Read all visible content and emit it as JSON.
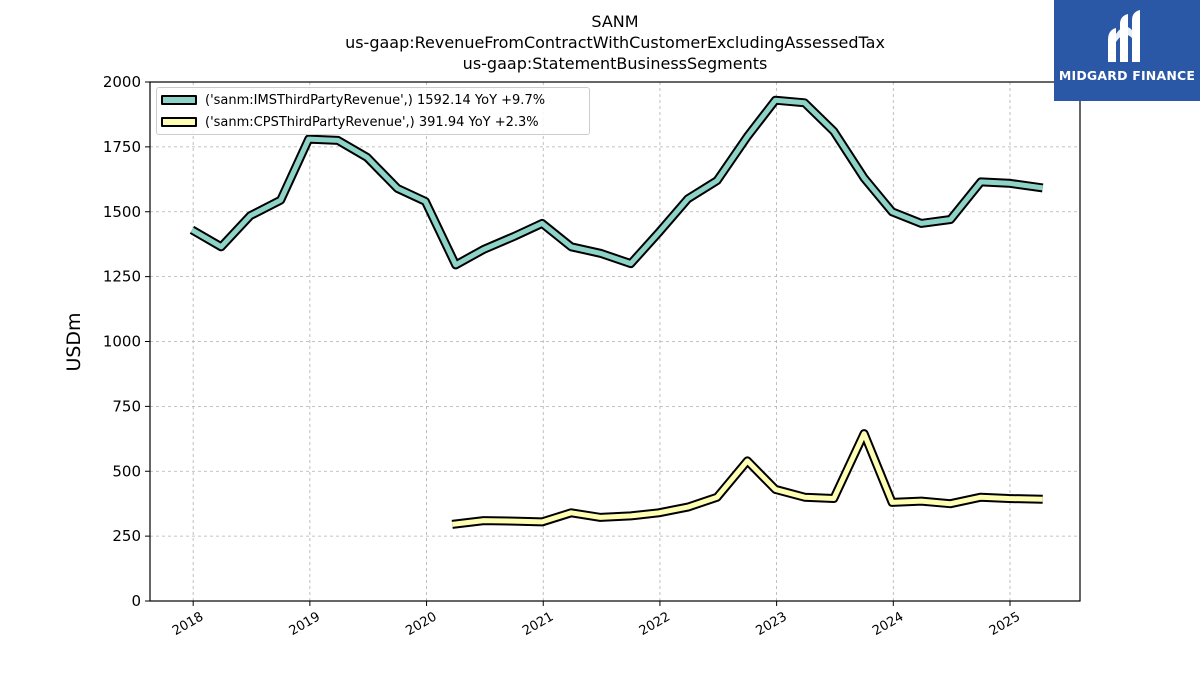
{
  "header": {
    "title_lines": [
      "SANM",
      "us-gaap:RevenueFromContractWithCustomerExcludingAssessedTax",
      "us-gaap:StatementBusinessSegments"
    ]
  },
  "logo": {
    "text": "MIDGARD FINANCE",
    "color": "#2b58a6"
  },
  "chart_data": {
    "type": "line",
    "ylabel": "USDm",
    "xlabel": "",
    "ylim": [
      0,
      2000
    ],
    "yticks": [
      "0",
      "250",
      "500",
      "750",
      "1000",
      "1250",
      "1500",
      "1750",
      "2000"
    ],
    "xticks": [
      "2018",
      "2019",
      "2020",
      "2021",
      "2022",
      "2023",
      "2024",
      "2025"
    ],
    "xlim": [
      2017.63,
      2025.6
    ],
    "grid": true,
    "legend_position": "top-left",
    "series": [
      {
        "name": "('sanm:IMSThirdPartyRevenue',) 1592.14 YoY +9.7%",
        "color": "#8dd3c7",
        "points": [
          [
            2017.99,
            1430
          ],
          [
            2018.24,
            1365
          ],
          [
            2018.49,
            1485
          ],
          [
            2018.75,
            1545
          ],
          [
            2018.99,
            1780
          ],
          [
            2019.24,
            1775
          ],
          [
            2019.49,
            1710
          ],
          [
            2019.75,
            1590
          ],
          [
            2019.99,
            1540
          ],
          [
            2020.25,
            1295
          ],
          [
            2020.49,
            1355
          ],
          [
            2020.75,
            1405
          ],
          [
            2020.99,
            1455
          ],
          [
            2021.24,
            1365
          ],
          [
            2021.49,
            1340
          ],
          [
            2021.75,
            1300
          ],
          [
            2021.99,
            1420
          ],
          [
            2022.24,
            1550
          ],
          [
            2022.49,
            1620
          ],
          [
            2022.75,
            1790
          ],
          [
            2022.99,
            1930
          ],
          [
            2023.24,
            1920
          ],
          [
            2023.49,
            1810
          ],
          [
            2023.75,
            1630
          ],
          [
            2023.99,
            1500
          ],
          [
            2024.24,
            1455
          ],
          [
            2024.49,
            1470
          ],
          [
            2024.75,
            1615
          ],
          [
            2024.99,
            1610
          ],
          [
            2025.28,
            1592
          ]
        ]
      },
      {
        "name": "('sanm:CPSThirdPartyRevenue',) 391.94 YoY +2.3%",
        "color": "#ffffb3",
        "points": [
          [
            2020.22,
            295
          ],
          [
            2020.49,
            310
          ],
          [
            2020.75,
            308
          ],
          [
            2020.99,
            305
          ],
          [
            2021.24,
            340
          ],
          [
            2021.49,
            322
          ],
          [
            2021.75,
            328
          ],
          [
            2021.99,
            340
          ],
          [
            2022.24,
            362
          ],
          [
            2022.49,
            400
          ],
          [
            2022.75,
            540
          ],
          [
            2022.99,
            430
          ],
          [
            2023.24,
            400
          ],
          [
            2023.49,
            395
          ],
          [
            2023.75,
            645
          ],
          [
            2023.99,
            380
          ],
          [
            2024.24,
            385
          ],
          [
            2024.49,
            375
          ],
          [
            2024.75,
            400
          ],
          [
            2024.99,
            395
          ],
          [
            2025.28,
            392
          ]
        ]
      }
    ]
  }
}
